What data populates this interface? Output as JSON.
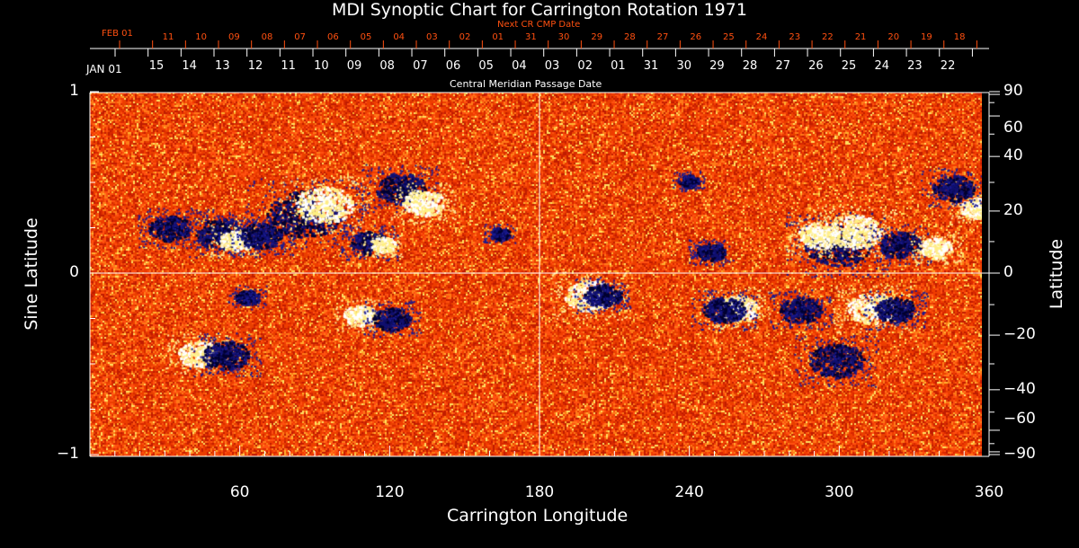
{
  "chart_data": {
    "type": "heatmap",
    "title": "MDI Synoptic Chart for Carrington Rotation 1971",
    "xlabel": "Carrington Longitude",
    "ylabel_left": "Sine Latitude",
    "ylabel_right": "Latitude",
    "top_axis_label": "Central Meridian Passage Date",
    "top_red_axis_label": "Next CR CMP Date",
    "xlim": [
      0,
      360
    ],
    "ylim": [
      -1,
      1
    ],
    "x_ticks": [
      "60",
      "120",
      "180",
      "240",
      "300",
      "360"
    ],
    "x_tick_values": [
      60,
      120,
      180,
      240,
      300,
      360
    ],
    "y_ticks_left": [
      "1",
      "0",
      "−1"
    ],
    "y_tick_values_left": [
      1,
      0,
      -1
    ],
    "y_ticks_right": [
      "90",
      "60",
      "40",
      "20",
      "0",
      "−20",
      "−40",
      "−60",
      "−90"
    ],
    "y_tick_values_right": [
      90,
      60,
      40,
      20,
      0,
      -20,
      -40,
      -60,
      -90
    ],
    "cmp_dates_start": "JAN 01",
    "cmp_dates": [
      "15",
      "14",
      "13",
      "12",
      "11",
      "10",
      "09",
      "08",
      "07",
      "06",
      "05",
      "04",
      "03",
      "02",
      "01",
      "31",
      "30",
      "29",
      "28",
      "27",
      "26",
      "25",
      "24",
      "23",
      "22"
    ],
    "next_cr_start": "FEB 01",
    "next_cr_dates": [
      "11",
      "10",
      "09",
      "08",
      "07",
      "06",
      "05",
      "04",
      "03",
      "02",
      "01",
      "31",
      "30",
      "29",
      "28",
      "27",
      "26",
      "25",
      "24",
      "23",
      "22",
      "21",
      "20",
      "19",
      "18"
    ],
    "colors": {
      "background": "#000000",
      "field": "#e83800",
      "positive": "#ffffff",
      "negative": "#101070"
    },
    "active_regions": [
      {
        "lon": 31.7,
        "slat": 0.25,
        "polarity": "neg",
        "size": 1
      },
      {
        "lon": 52.2,
        "slat": 0.22,
        "polarity": "neg",
        "size": 1.2
      },
      {
        "lon": 58.3,
        "slat": 0.18,
        "polarity": "pos",
        "size": 0.8
      },
      {
        "lon": 68.4,
        "slat": 0.21,
        "polarity": "neg",
        "size": 1
      },
      {
        "lon": 85.7,
        "slat": 0.33,
        "polarity": "neg",
        "size": 1.8
      },
      {
        "lon": 93.6,
        "slat": 0.38,
        "polarity": "pos",
        "size": 1.4
      },
      {
        "lon": 124.2,
        "slat": 0.47,
        "polarity": "neg",
        "size": 1.2
      },
      {
        "lon": 133.2,
        "slat": 0.39,
        "polarity": "pos",
        "size": 1
      },
      {
        "lon": 111.6,
        "slat": 0.17,
        "polarity": "neg",
        "size": 0.9
      },
      {
        "lon": 117,
        "slat": 0.16,
        "polarity": "pos",
        "size": 0.6
      },
      {
        "lon": 163.8,
        "slat": 0.22,
        "polarity": "neg",
        "size": 0.5
      },
      {
        "lon": 199.8,
        "slat": -0.12,
        "polarity": "pos",
        "size": 1.2
      },
      {
        "lon": 205.2,
        "slat": -0.12,
        "polarity": "neg",
        "size": 0.9
      },
      {
        "lon": 259.2,
        "slat": -0.19,
        "polarity": "pos",
        "size": 1
      },
      {
        "lon": 253.8,
        "slat": -0.2,
        "polarity": "neg",
        "size": 1
      },
      {
        "lon": 284.4,
        "slat": -0.2,
        "polarity": "neg",
        "size": 1
      },
      {
        "lon": 313.2,
        "slat": -0.19,
        "polarity": "pos",
        "size": 1.2
      },
      {
        "lon": 322.2,
        "slat": -0.2,
        "polarity": "neg",
        "size": 1
      },
      {
        "lon": 298.8,
        "slat": -0.48,
        "polarity": "neg",
        "size": 1.3
      },
      {
        "lon": 108,
        "slat": -0.23,
        "polarity": "pos",
        "size": 0.8
      },
      {
        "lon": 120.6,
        "slat": -0.25,
        "polarity": "neg",
        "size": 0.9
      },
      {
        "lon": 43.2,
        "slat": -0.44,
        "polarity": "pos",
        "size": 1
      },
      {
        "lon": 54,
        "slat": -0.45,
        "polarity": "neg",
        "size": 1.1
      },
      {
        "lon": 63,
        "slat": -0.13,
        "polarity": "neg",
        "size": 0.6
      },
      {
        "lon": 298.8,
        "slat": 0.16,
        "polarity": "neg",
        "size": 1.6
      },
      {
        "lon": 306,
        "slat": 0.23,
        "polarity": "pos",
        "size": 1.3
      },
      {
        "lon": 291.6,
        "slat": 0.21,
        "polarity": "pos",
        "size": 1
      },
      {
        "lon": 248.4,
        "slat": 0.12,
        "polarity": "neg",
        "size": 0.7
      },
      {
        "lon": 239.4,
        "slat": 0.51,
        "polarity": "neg",
        "size": 0.5
      },
      {
        "lon": 324,
        "slat": 0.16,
        "polarity": "neg",
        "size": 1
      },
      {
        "lon": 338.4,
        "slat": 0.14,
        "polarity": "pos",
        "size": 0.8
      },
      {
        "lon": 354.6,
        "slat": 0.36,
        "polarity": "pos",
        "size": 0.8
      },
      {
        "lon": 345.6,
        "slat": 0.47,
        "polarity": "neg",
        "size": 1
      }
    ]
  }
}
